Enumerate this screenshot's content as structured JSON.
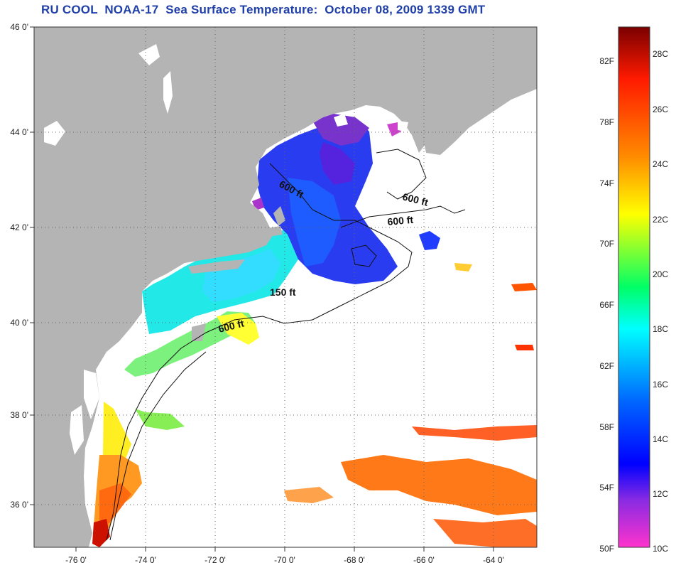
{
  "title": "RU COOL  NOAA-17  Sea Surface Temperature:  October 08, 2009 1339 GMT",
  "map": {
    "lat_labels": [
      "46 0'",
      "44 0'",
      "42 0'",
      "40 0'",
      "38 0'",
      "36 0'"
    ],
    "lon_labels": [
      "-76 0'",
      "-74 0'",
      "-72 0'",
      "-70 0'",
      "-68 0'",
      "-66 0'",
      "-64 0'"
    ],
    "contour_labels": [
      "600 ft",
      "600 ft",
      "600 ft",
      "150 ft",
      "600 ft"
    ],
    "colors": {
      "land": "#b4b4b4",
      "water_nodata": "#ffffff",
      "grid": "#666666"
    }
  },
  "colorbar": {
    "fahrenheit_labels": [
      "82F",
      "78F",
      "74F",
      "70F",
      "66F",
      "62F",
      "58F",
      "54F",
      "50F"
    ],
    "celsius_labels": [
      "28C",
      "26C",
      "24C",
      "22C",
      "20C",
      "18C",
      "16C",
      "14C",
      "12C",
      "10C"
    ],
    "range_celsius": [
      10,
      29.2
    ],
    "gradient_colors_top_to_bottom": [
      "#7a0000",
      "#ff1a00",
      "#ff8c00",
      "#ffff00",
      "#00ff66",
      "#00ffff",
      "#0066ff",
      "#0000ff",
      "#8a2be2",
      "#ff33cc"
    ]
  }
}
